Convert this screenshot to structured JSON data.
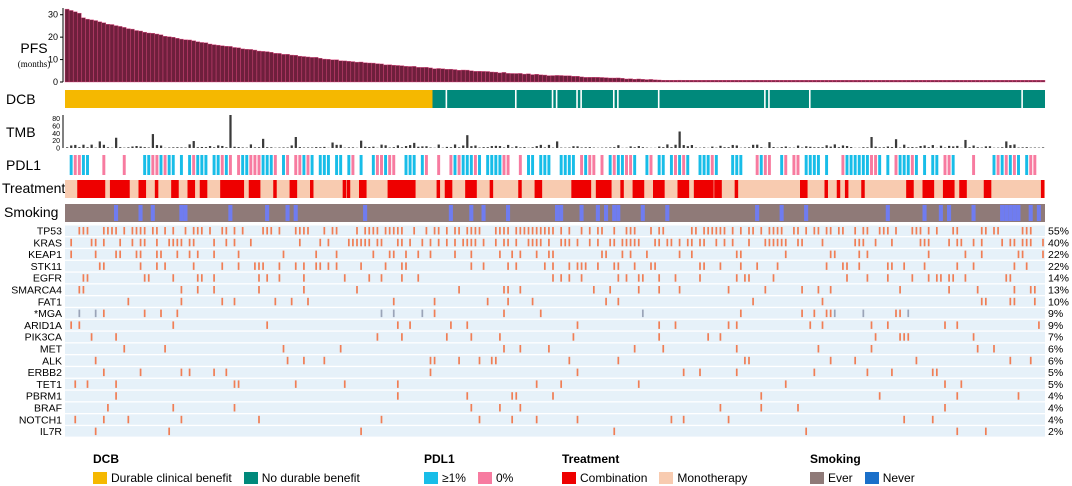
{
  "colors": {
    "pfs_bar": "#6e1f3c",
    "pfs_stripe": "#e04a80",
    "dcb_yes": "#f5b800",
    "dcb_no": "#00897b",
    "tmb_bar": "#3a3a3a",
    "pdl1_pos": "#18bde8",
    "pdl1_neg": "#f77ba0",
    "treat_combo": "#ee0000",
    "treat_mono": "#f8cbb0",
    "smoke_ever": "#8f7a78",
    "smoke_never": "#6f7cf0",
    "gene_bg": "#e6f1f9",
    "mut": "#f07e55",
    "mut_alt": "#9aa4b8"
  },
  "chart_data": {
    "type": "oncoprint",
    "n_samples": 240,
    "n_dcb": 90,
    "pfs": {
      "label": "PFS",
      "sublabel": "(months)",
      "yticks": [
        "0",
        "10",
        "20",
        "30"
      ],
      "ylim": [
        0,
        33
      ],
      "max_value": 32.5
    },
    "dcb": {
      "label": "DCB",
      "no_benefit_gaps": [
        93,
        110,
        119,
        120,
        125,
        126,
        134,
        135,
        145,
        171,
        172,
        182,
        234
      ]
    },
    "tmb": {
      "label": "TMB",
      "yticks": [
        "0",
        "20",
        "40",
        "60",
        "80"
      ],
      "ylim": [
        0,
        90
      ],
      "spikes": [
        [
          40,
          90
        ],
        [
          21,
          38
        ],
        [
          12,
          28
        ],
        [
          48,
          25
        ],
        [
          56,
          30
        ],
        [
          98,
          35
        ],
        [
          150,
          45
        ],
        [
          197,
          30
        ],
        [
          203,
          24
        ],
        [
          220,
          22
        ],
        [
          65,
          15
        ],
        [
          72,
          20
        ],
        [
          120,
          18
        ],
        [
          172,
          16
        ],
        [
          230,
          18
        ],
        [
          8,
          18
        ],
        [
          31,
          19
        ],
        [
          85,
          14
        ]
      ]
    },
    "pdl1": {
      "label": "PDL1"
    },
    "treatment": {
      "label": "Treatment",
      "combination_runs": [
        [
          3,
          9
        ],
        [
          11,
          15
        ],
        [
          18,
          19
        ],
        [
          22,
          22
        ],
        [
          26,
          27
        ],
        [
          30,
          31
        ],
        [
          33,
          34
        ],
        [
          38,
          43
        ],
        [
          45,
          47
        ],
        [
          51,
          51
        ],
        [
          55,
          56
        ],
        [
          60,
          60
        ],
        [
          68,
          68
        ],
        [
          69,
          69
        ],
        [
          72,
          73
        ],
        [
          79,
          85
        ],
        [
          91,
          91
        ],
        [
          93,
          94
        ],
        [
          98,
          100
        ],
        [
          104,
          104
        ],
        [
          111,
          111
        ],
        [
          115,
          116
        ],
        [
          124,
          128
        ],
        [
          130,
          133
        ],
        [
          136,
          136
        ],
        [
          139,
          141
        ],
        [
          144,
          146
        ],
        [
          150,
          152
        ],
        [
          154,
          158
        ],
        [
          159,
          160
        ],
        [
          164,
          164
        ],
        [
          180,
          181
        ],
        [
          186,
          186
        ],
        [
          189,
          189
        ],
        [
          191,
          191
        ],
        [
          195,
          195
        ],
        [
          206,
          207
        ],
        [
          210,
          212
        ],
        [
          215,
          217
        ],
        [
          219,
          220
        ],
        [
          225,
          226
        ],
        [
          239,
          239
        ]
      ]
    },
    "smoking": {
      "label": "Smoking"
    },
    "genes": [
      {
        "name": "TP53",
        "pct": "55%",
        "freq": 0.55
      },
      {
        "name": "KRAS",
        "pct": "40%",
        "freq": 0.4
      },
      {
        "name": "KEAP1",
        "pct": "22%",
        "freq": 0.22
      },
      {
        "name": "STK11",
        "pct": "22%",
        "freq": 0.22
      },
      {
        "name": "EGFR",
        "pct": "14%",
        "freq": 0.14
      },
      {
        "name": "SMARCA4",
        "pct": "13%",
        "freq": 0.13
      },
      {
        "name": "FAT1",
        "pct": "10%",
        "freq": 0.1
      },
      {
        "name": "*MGA",
        "pct": "9%",
        "freq": 0.09
      },
      {
        "name": "ARID1A",
        "pct": "9%",
        "freq": 0.09
      },
      {
        "name": "PIK3CA",
        "pct": "7%",
        "freq": 0.07
      },
      {
        "name": "MET",
        "pct": "6%",
        "freq": 0.06
      },
      {
        "name": "ALK",
        "pct": "6%",
        "freq": 0.06
      },
      {
        "name": "ERBB2",
        "pct": "5%",
        "freq": 0.05
      },
      {
        "name": "TET1",
        "pct": "5%",
        "freq": 0.05
      },
      {
        "name": "PBRM1",
        "pct": "4%",
        "freq": 0.04
      },
      {
        "name": "BRAF",
        "pct": "4%",
        "freq": 0.04
      },
      {
        "name": "NOTCH1",
        "pct": "4%",
        "freq": 0.04
      },
      {
        "name": "IL7R",
        "pct": "2%",
        "freq": 0.02
      }
    ]
  },
  "legend": {
    "dcb": {
      "title": "DCB",
      "items": [
        "Durable clinical benefit",
        "No durable benefit"
      ]
    },
    "pdl1": {
      "title": "PDL1",
      "items": [
        "≥1%",
        "0%"
      ]
    },
    "treatment": {
      "title": "Treatment",
      "items": [
        "Combination",
        "Monotherapy"
      ]
    },
    "smoking": {
      "title": "Smoking",
      "items": [
        "Ever",
        "Never"
      ]
    }
  }
}
